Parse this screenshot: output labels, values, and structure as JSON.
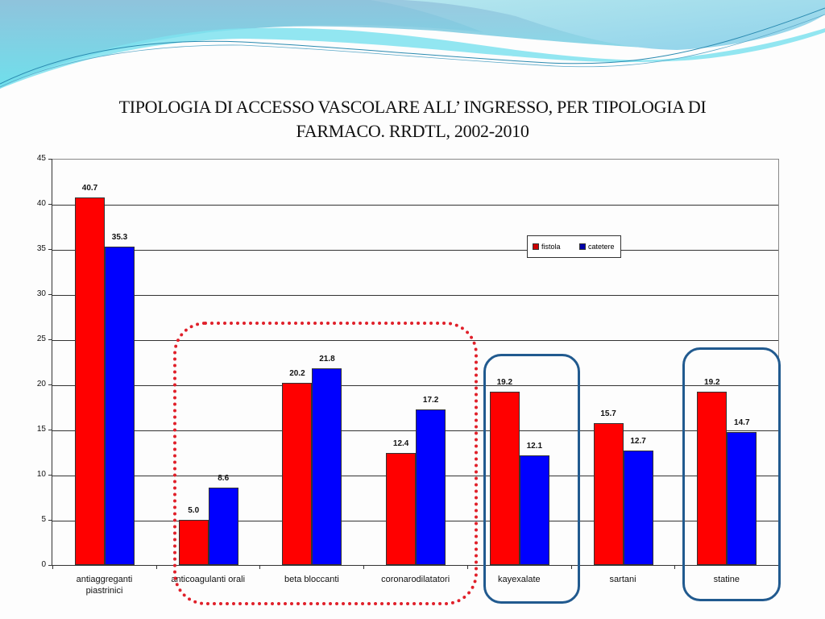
{
  "slide": {
    "title_line1": "TIPOLOGIA DI ACCESSO VASCOLARE ALL’ INGRESSO, PER TIPOLOGIA DI",
    "title_line2": "FARMACO. RRDTL, 2002-2010"
  },
  "legend": {
    "items": [
      {
        "label": "fistola",
        "color": "#ff0000"
      },
      {
        "label": "catetere",
        "color": "#0000ff"
      }
    ]
  },
  "yticks": [
    "0",
    "5",
    "10",
    "15",
    "20",
    "25",
    "30",
    "35",
    "40",
    "45"
  ],
  "categories": [
    {
      "label": "antiaggreganti piastrinici",
      "line1": "antiaggreganti",
      "line2": "piastrinici",
      "fistola": 40.7,
      "catetere": 35.3,
      "fistola_label": "40.7",
      "catetere_label": "35.3"
    },
    {
      "label": "anticoagulanti orali",
      "line1": "anticoagulanti orali",
      "line2": "",
      "fistola": 5.0,
      "catetere": 8.6,
      "fistola_label": "5.0",
      "catetere_label": "8.6"
    },
    {
      "label": "beta bloccanti",
      "line1": "beta bloccanti",
      "line2": "",
      "fistola": 20.2,
      "catetere": 21.8,
      "fistola_label": "20.2",
      "catetere_label": "21.8"
    },
    {
      "label": "coronarodilatatori",
      "line1": "coronarodilatatori",
      "line2": "",
      "fistola": 12.4,
      "catetere": 17.2,
      "fistola_label": "12.4",
      "catetere_label": "17.2"
    },
    {
      "label": "kayexalate",
      "line1": "kayexalate",
      "line2": "",
      "fistola": 19.2,
      "catetere": 12.1,
      "fistola_label": "19.2",
      "catetere_label": "12.1"
    },
    {
      "label": "sartani",
      "line1": "sartani",
      "line2": "",
      "fistola": 15.7,
      "catetere": 12.7,
      "fistola_label": "15.7",
      "catetere_label": "12.7"
    },
    {
      "label": "statine",
      "line1": "statine",
      "line2": "",
      "fistola": 19.2,
      "catetere": 14.7,
      "fistola_label": "19.2",
      "catetere_label": "14.7"
    }
  ],
  "highlights": [
    {
      "name": "red-dotted-group",
      "style": "red-dotted",
      "covers": [
        "anticoagulanti orali",
        "beta bloccanti",
        "coronarodilatatori"
      ],
      "color": "#e0202a"
    },
    {
      "name": "blue-box-kayexalate",
      "style": "blue-solid",
      "covers": [
        "kayexalate"
      ],
      "color": "#215a8f"
    },
    {
      "name": "blue-box-statine",
      "style": "blue-solid",
      "covers": [
        "statine"
      ],
      "color": "#215a8f"
    }
  ],
  "chart_data": {
    "type": "bar",
    "title": "TIPOLOGIA DI ACCESSO VASCOLARE ALL’ INGRESSO, PER TIPOLOGIA DI FARMACO. RRDTL, 2002-2010",
    "categories": [
      "antiaggreganti piastrinici",
      "anticoagulanti orali",
      "beta bloccanti",
      "coronarodilatatori",
      "kayexalate",
      "sartani",
      "statine"
    ],
    "series": [
      {
        "name": "fistola",
        "color": "#ff0000",
        "values": [
          40.7,
          5.0,
          20.2,
          12.4,
          19.2,
          15.7,
          19.2
        ]
      },
      {
        "name": "catetere",
        "color": "#0000ff",
        "values": [
          35.3,
          8.6,
          21.8,
          17.2,
          12.1,
          12.7,
          14.7
        ]
      }
    ],
    "xlabel": "",
    "ylabel": "",
    "ylim": [
      0,
      45
    ],
    "yticks": [
      0,
      5,
      10,
      15,
      20,
      25,
      30,
      35,
      40,
      45
    ],
    "grid": true,
    "legend_position": "upper right (inside plot)",
    "data_labels": true
  }
}
